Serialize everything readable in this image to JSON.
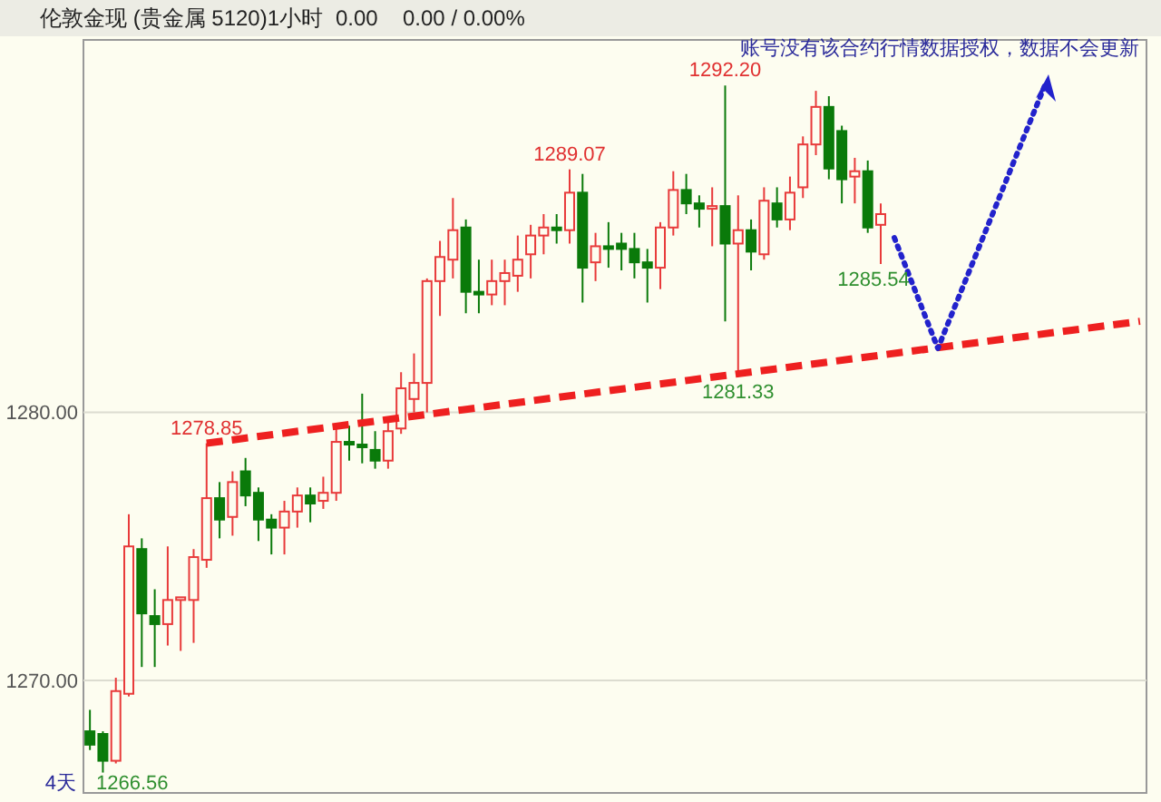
{
  "chart_data": {
    "type": "candlestick",
    "title": "伦敦金现 (贵金属 5120)1小时",
    "categories": [
      null,
      null,
      null,
      null,
      null,
      null,
      null,
      null,
      null,
      null,
      null,
      null,
      null,
      null,
      null,
      null,
      null,
      null,
      null,
      null,
      null,
      null,
      null,
      null,
      null,
      null,
      null,
      null,
      null,
      null,
      null,
      null,
      null,
      null,
      null,
      null,
      null,
      null,
      null,
      null,
      null,
      null,
      null,
      null,
      null,
      null,
      null,
      null,
      null,
      null,
      null,
      null,
      null,
      null,
      null,
      null,
      null,
      null,
      null,
      null,
      null,
      null,
      null,
      null,
      null,
      null,
      null,
      null,
      null,
      null,
      null,
      null,
      null,
      null,
      null,
      null,
      null,
      null,
      null,
      null,
      null,
      null
    ],
    "ohlc": [
      [
        1268.1,
        1268.9,
        1267.4,
        1267.6
      ],
      [
        1268.0,
        1268.1,
        1266.56,
        1267.0
      ],
      [
        1267.0,
        1270.1,
        1266.9,
        1269.6
      ],
      [
        1269.5,
        1276.2,
        1269.4,
        1275.0
      ],
      [
        1274.9,
        1275.3,
        1270.5,
        1272.5
      ],
      [
        1272.4,
        1273.4,
        1270.5,
        1272.1
      ],
      [
        1272.1,
        1275.0,
        1271.3,
        1273.0
      ],
      [
        1273.0,
        1273.1,
        1271.1,
        1273.1
      ],
      [
        1273.0,
        1274.9,
        1271.4,
        1274.6
      ],
      [
        1274.5,
        1278.85,
        1274.2,
        1276.8
      ],
      [
        1276.8,
        1277.4,
        1275.3,
        1276.0
      ],
      [
        1276.1,
        1277.8,
        1275.4,
        1277.4
      ],
      [
        1277.8,
        1278.3,
        1276.5,
        1276.9
      ],
      [
        1277.0,
        1277.2,
        1275.2,
        1276.0
      ],
      [
        1276.0,
        1276.2,
        1274.7,
        1275.7
      ],
      [
        1275.7,
        1276.7,
        1274.7,
        1276.3
      ],
      [
        1276.3,
        1277.2,
        1275.7,
        1276.9
      ],
      [
        1276.9,
        1277.2,
        1275.9,
        1276.6
      ],
      [
        1276.7,
        1277.6,
        1276.4,
        1277.0
      ],
      [
        1277.0,
        1279.5,
        1276.7,
        1278.9
      ],
      [
        1278.9,
        1279.5,
        1278.2,
        1278.8
      ],
      [
        1278.8,
        1280.7,
        1278.1,
        1278.7
      ],
      [
        1278.6,
        1279.3,
        1277.9,
        1278.2
      ],
      [
        1278.2,
        1279.7,
        1277.9,
        1279.3
      ],
      [
        1279.4,
        1281.5,
        1279.2,
        1280.9
      ],
      [
        1280.5,
        1282.2,
        1280.0,
        1281.1
      ],
      [
        1281.1,
        1285.0,
        1280.0,
        1284.9
      ],
      [
        1284.9,
        1286.4,
        1283.6,
        1285.8
      ],
      [
        1285.7,
        1288.0,
        1285.0,
        1286.8
      ],
      [
        1286.9,
        1287.2,
        1283.7,
        1284.5
      ],
      [
        1284.5,
        1285.7,
        1283.7,
        1284.4
      ],
      [
        1284.4,
        1285.7,
        1284.0,
        1284.9
      ],
      [
        1284.9,
        1285.7,
        1284.0,
        1285.2
      ],
      [
        1285.1,
        1286.6,
        1284.5,
        1285.7
      ],
      [
        1285.9,
        1287.0,
        1285.0,
        1286.6
      ],
      [
        1286.6,
        1287.4,
        1285.9,
        1286.9
      ],
      [
        1286.9,
        1287.4,
        1286.3,
        1286.8
      ],
      [
        1286.8,
        1289.07,
        1286.3,
        1288.2
      ],
      [
        1288.2,
        1288.9,
        1284.1,
        1285.4
      ],
      [
        1285.6,
        1286.7,
        1284.9,
        1286.2
      ],
      [
        1286.2,
        1287.1,
        1285.4,
        1286.1
      ],
      [
        1286.3,
        1286.7,
        1285.3,
        1286.1
      ],
      [
        1286.1,
        1286.7,
        1285.0,
        1285.6
      ],
      [
        1285.6,
        1286.1,
        1284.1,
        1285.4
      ],
      [
        1285.4,
        1287.1,
        1284.6,
        1286.9
      ],
      [
        1286.9,
        1289.0,
        1286.6,
        1288.3
      ],
      [
        1288.3,
        1288.9,
        1287.4,
        1287.8
      ],
      [
        1287.8,
        1288.1,
        1286.9,
        1287.6
      ],
      [
        1287.6,
        1288.4,
        1286.2,
        1287.7
      ],
      [
        1287.7,
        1292.2,
        1283.4,
        1286.3
      ],
      [
        1286.3,
        1288.1,
        1281.33,
        1286.8
      ],
      [
        1286.8,
        1287.2,
        1285.3,
        1286.0
      ],
      [
        1285.9,
        1288.4,
        1285.7,
        1287.9
      ],
      [
        1287.8,
        1288.4,
        1286.9,
        1287.2
      ],
      [
        1287.2,
        1288.8,
        1286.8,
        1288.2
      ],
      [
        1288.4,
        1290.3,
        1288.0,
        1290.0
      ],
      [
        1290.0,
        1292.0,
        1289.6,
        1291.4
      ],
      [
        1291.4,
        1291.8,
        1288.7,
        1289.1
      ],
      [
        1290.5,
        1290.7,
        1287.8,
        1288.7
      ],
      [
        1288.8,
        1289.5,
        1287.8,
        1289.0
      ],
      [
        1289.0,
        1289.4,
        1286.7,
        1286.9
      ],
      [
        1287.0,
        1287.8,
        1285.54,
        1287.4
      ],
      null,
      null,
      null,
      null,
      null,
      null,
      null,
      null,
      null,
      null,
      null,
      null,
      null,
      null,
      null,
      null,
      null,
      null,
      null,
      null
    ],
    "colors": [
      "#0a7a0a",
      "#0a7a0a",
      "#e83a3a",
      "#e83a3a",
      "#0a7a0a",
      "#0a7a0a",
      "#e83a3a",
      "#e83a3a",
      "#e83a3a",
      "#e83a3a",
      "#0a7a0a",
      "#e83a3a",
      "#0a7a0a",
      "#0a7a0a",
      "#0a7a0a",
      "#e83a3a",
      "#e83a3a",
      "#0a7a0a",
      "#e83a3a",
      "#e83a3a",
      "#0a7a0a",
      "#0a7a0a",
      "#0a7a0a",
      "#e83a3a",
      "#e83a3a",
      "#e83a3a",
      "#e83a3a",
      "#e83a3a",
      "#e83a3a",
      "#0a7a0a",
      "#0a7a0a",
      "#e83a3a",
      "#e83a3a",
      "#e83a3a",
      "#e83a3a",
      "#e83a3a",
      "#0a7a0a",
      "#e83a3a",
      "#0a7a0a",
      "#e83a3a",
      "#0a7a0a",
      "#0a7a0a",
      "#0a7a0a",
      "#0a7a0a",
      "#e83a3a",
      "#e83a3a",
      "#0a7a0a",
      "#0a7a0a",
      "#e83a3a",
      "#0a7a0a",
      "#e83a3a",
      "#0a7a0a",
      "#e83a3a",
      "#0a7a0a",
      "#e83a3a",
      "#e83a3a",
      "#e83a3a",
      "#0a7a0a",
      "#0a7a0a",
      "#e83a3a",
      "#0a7a0a",
      "#e83a3a",
      null,
      null,
      null,
      null,
      null,
      null,
      null,
      null,
      null,
      null,
      null,
      null,
      null,
      null,
      null,
      null,
      null,
      null,
      null,
      null
    ],
    "series": [
      {
        "type": "line",
        "values": [
          null,
          null,
          null,
          null,
          null,
          null,
          null,
          null,
          null,
          1278.85,
          null,
          null,
          null,
          null,
          null,
          null,
          null,
          null,
          null,
          null,
          null,
          null,
          null,
          null,
          null,
          null,
          null,
          null,
          null,
          null,
          null,
          null,
          null,
          null,
          null,
          null,
          null,
          null,
          null,
          null,
          null,
          null,
          null,
          null,
          null,
          null,
          null,
          null,
          null,
          null,
          null,
          null,
          null,
          null,
          null,
          null,
          null,
          null,
          null,
          null,
          null,
          null,
          null,
          null,
          null,
          null,
          null,
          null,
          null,
          null,
          null,
          null,
          null,
          null,
          null,
          null,
          null,
          null,
          null,
          null,
          null,
          1283.4
        ],
        "color": "#ee2020",
        "line_style": "dashed"
      }
    ],
    "ylim": [
      1265.8,
      1293.9
    ],
    "yticks": [
      {
        "value": 1270,
        "label": "1270.00"
      },
      {
        "value": 1280,
        "label": "1280.00"
      }
    ],
    "grid": "y",
    "tick_labels": "y",
    "annotations": [
      "0.00",
      "0.00 / 0.00%",
      "账号没有该合约行情数据授权，数据不会更新",
      "4天",
      "1266.56",
      {
        "text": "1278.85",
        "y": 1278.85
      },
      {
        "text": "1289.07",
        "y": 1289.07
      },
      {
        "text": "1292.20",
        "y": 1292.2
      },
      {
        "text": "1281.33",
        "y": 1281.33
      },
      {
        "text": "1285.54",
        "y": 1285.54
      }
    ]
  }
}
